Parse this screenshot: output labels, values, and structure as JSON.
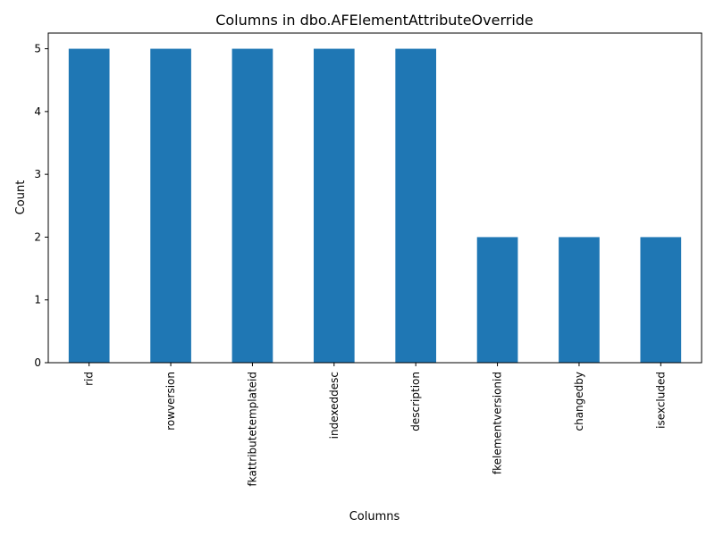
{
  "chart_data": {
    "type": "bar",
    "title": "Columns in dbo.AFElementAttributeOverride",
    "xlabel": "Columns",
    "ylabel": "Count",
    "categories": [
      "rid",
      "rowversion",
      "fkattributetemplateid",
      "indexeddesc",
      "description",
      "fkelementversionid",
      "changedby",
      "isexcluded"
    ],
    "values": [
      5,
      5,
      5,
      5,
      5,
      2,
      2,
      2
    ],
    "ylim": [
      0,
      5.25
    ],
    "yticks": [
      0,
      1,
      2,
      3,
      4,
      5
    ],
    "bar_color": "#1f77b4",
    "grid": false,
    "legend": "none"
  }
}
